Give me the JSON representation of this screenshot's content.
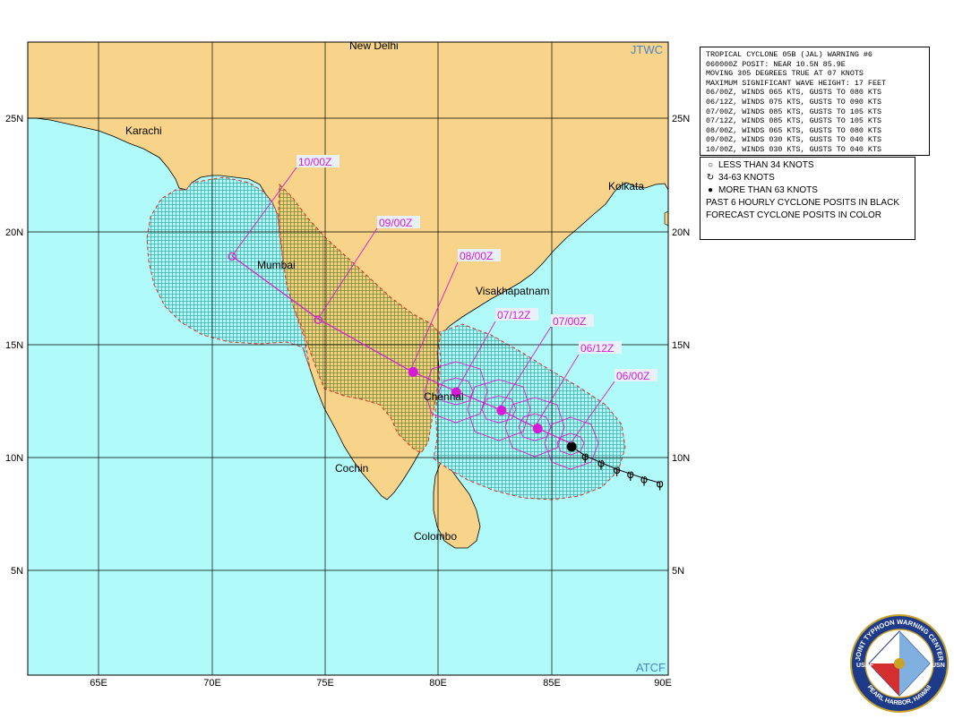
{
  "map": {
    "agency_top": "JTWC",
    "agency_bottom": "ATCF",
    "lon_labels": [
      "65E",
      "70E",
      "75E",
      "80E",
      "85E",
      "90E"
    ],
    "lat_labels": [
      "25N",
      "20N",
      "15N",
      "10N",
      "5N"
    ],
    "cities": [
      {
        "name": "New Delhi",
        "lon": 77.2,
        "lat": 28.6
      },
      {
        "name": "Karachi",
        "lon": 67.0,
        "lat": 24.9
      },
      {
        "name": "Kolkata",
        "lon": 88.4,
        "lat": 22.6
      },
      {
        "name": "Mumbai",
        "lon": 72.9,
        "lat": 19.1
      },
      {
        "name": "Visakhapatnam",
        "lon": 83.3,
        "lat": 17.7
      },
      {
        "name": "Chennai",
        "lon": 80.3,
        "lat": 13.1
      },
      {
        "name": "Cochin",
        "lon": 76.3,
        "lat": 9.9
      },
      {
        "name": "Colombo",
        "lon": 79.9,
        "lat": 6.9
      }
    ]
  },
  "track": {
    "forecast_points": [
      {
        "label": "06/00Z",
        "lon": 85.9,
        "lat": 10.5,
        "intensity_kt": 65
      },
      {
        "label": "06/12Z",
        "lon": 84.4,
        "lat": 11.3,
        "intensity_kt": 75
      },
      {
        "label": "07/00Z",
        "lon": 82.8,
        "lat": 12.1,
        "intensity_kt": 85
      },
      {
        "label": "07/12Z",
        "lon": 80.8,
        "lat": 12.9,
        "intensity_kt": 85
      },
      {
        "label": "08/00Z",
        "lon": 78.9,
        "lat": 13.8,
        "intensity_kt": 65
      },
      {
        "label": "09/00Z",
        "lon": 74.7,
        "lat": 16.1,
        "intensity_kt": 30
      },
      {
        "label": "10/00Z",
        "lon": 70.9,
        "lat": 18.9,
        "intensity_kt": 30
      }
    ],
    "past_points": [
      {
        "lon": 86.5,
        "lat": 10.1
      },
      {
        "lon": 87.2,
        "lat": 9.8
      },
      {
        "lon": 87.9,
        "lat": 9.5
      },
      {
        "lon": 88.5,
        "lat": 9.3
      },
      {
        "lon": 89.1,
        "lat": 9.1
      },
      {
        "lon": 89.8,
        "lat": 8.9
      }
    ]
  },
  "warning": {
    "lines": [
      "TROPICAL CYCLONE 05B (JAL) WARNING #6",
      "060000Z POSIT: NEAR 10.5N 85.9E",
      "MOVING 305 DEGREES TRUE AT 07 KNOTS",
      "MAXIMUM SIGNIFICANT WAVE HEIGHT: 17 FEET",
      "06/00Z, WINDS 065 KTS, GUSTS TO 080 KTS",
      "06/12Z, WINDS 075 KTS, GUSTS TO 090 KTS",
      "07/00Z, WINDS 085 KTS, GUSTS TO 105 KTS",
      "07/12Z, WINDS 085 KTS, GUSTS TO 105 KTS",
      "08/00Z, WINDS 065 KTS, GUSTS TO 080 KTS",
      "09/00Z, WINDS 030 KTS, GUSTS TO 040 KTS",
      "10/00Z, WINDS 030 KTS, GUSTS TO 040 KTS"
    ]
  },
  "legend": {
    "items": [
      {
        "symbol": "○",
        "label": "LESS THAN 34 KNOTS"
      },
      {
        "symbol": "↻",
        "label": "34-63 KNOTS"
      },
      {
        "symbol": "●",
        "label": "MORE THAN 63 KNOTS"
      }
    ],
    "note1": "PAST 6 HOURLY CYCLONE POSITS IN BLACK",
    "note2": "FORECAST CYCLONE POSITS IN COLOR"
  },
  "colors": {
    "ocean": "#b1fafa",
    "land": "#f8d38a",
    "grid": "#000000",
    "forecast": "#d81ad8",
    "danger_outline": "#d9322a",
    "agency": "#4a83c8"
  },
  "seal": {
    "text": "JOINT TYPHOON WARNING CENTER · PEARL HARBOR, HAWAII",
    "services": [
      "USAF",
      "USN"
    ]
  }
}
